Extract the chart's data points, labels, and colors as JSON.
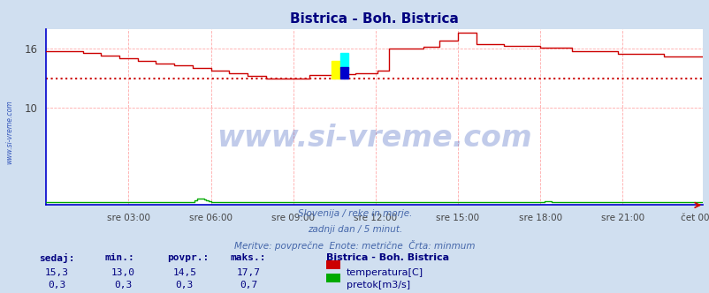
{
  "title": "Bistrica - Boh. Bistrica",
  "title_color": "#000080",
  "bg_color": "#d0dff0",
  "plot_bg_color": "#ffffff",
  "grid_color": "#ffaaaa",
  "x_ticks_labels": [
    "sre 03:00",
    "sre 06:00",
    "sre 09:00",
    "sre 12:00",
    "sre 15:00",
    "sre 18:00",
    "sre 21:00",
    "čet 00:00"
  ],
  "x_ticks_positions": [
    36,
    72,
    108,
    144,
    180,
    216,
    252,
    287
  ],
  "n_points": 288,
  "temp_color": "#cc0000",
  "flow_color": "#00aa00",
  "avg_line_color": "#cc0000",
  "avg_temp": 13.0,
  "temp_min": 13.0,
  "temp_max": 17.7,
  "flow_min": 0.3,
  "flow_max": 0.7,
  "flow_avg": 0.3,
  "ylim_min": 0,
  "ylim_max": 18,
  "yticks": [
    10,
    16
  ],
  "footer_lines": [
    "Slovenija / reke in morje.",
    "zadnji dan / 5 minut.",
    "Meritve: povprečne  Enote: metrične  Črta: minmum"
  ],
  "footer_color": "#4466aa",
  "left_label": "www.si-vreme.com",
  "left_label_color": "#3355bb",
  "watermark": "www.si-vreme.com",
  "watermark_color": "#3355bb",
  "table_headers": [
    "sedaj:",
    "min.:",
    "povpr.:",
    "maks.:"
  ],
  "table_header_color": "#000080",
  "table_values_temp": [
    "15,3",
    "13,0",
    "14,5",
    "17,7"
  ],
  "table_values_flow": [
    "0,3",
    "0,3",
    "0,3",
    "0,7"
  ],
  "table_color": "#000080",
  "legend_title": "Bistrica - Boh. Bistrica",
  "legend_items": [
    "temperatura[C]",
    "pretok[m3/s]"
  ],
  "legend_colors": [
    "#cc0000",
    "#00aa00"
  ],
  "spine_color": "#0000cc",
  "arrow_color": "#cc0000"
}
